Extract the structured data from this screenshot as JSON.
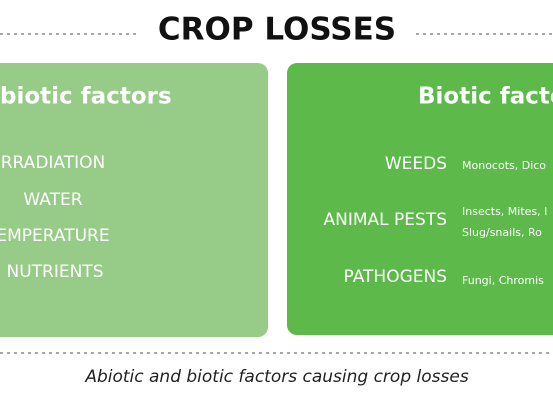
{
  "header": {
    "title": "CROP LOSSES"
  },
  "abiotic": {
    "heading": "biotic factors",
    "items": [
      "RRADIATION",
      "WATER",
      "EMPERATURE",
      "NUTRIENTS"
    ]
  },
  "biotic": {
    "heading": "Biotic facto",
    "groups": [
      {
        "label": "WEEDS",
        "details": [
          "Monocots, Dico"
        ]
      },
      {
        "label": "ANIMAL PESTS",
        "details": [
          "Insects, Mites, I",
          "Slug/snails, Ro"
        ]
      },
      {
        "label": "PATHOGENS",
        "details": [
          "Fungi, Chromis"
        ]
      }
    ]
  },
  "caption": "Abiotic and biotic factors causing crop losses"
}
